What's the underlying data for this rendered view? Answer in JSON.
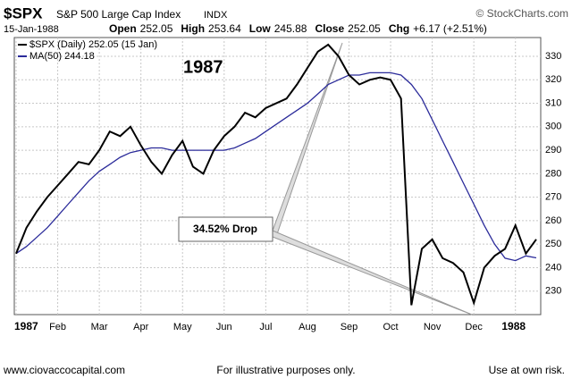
{
  "header": {
    "symbol": "$SPX",
    "name": "S&P 500 Large Cap Index",
    "exchange": "INDX",
    "source": "© StockCharts.com",
    "date": "15-Jan-1988",
    "quote": [
      {
        "label": "Open",
        "value": "252.05"
      },
      {
        "label": "High",
        "value": "253.64"
      },
      {
        "label": "Low",
        "value": "245.88"
      },
      {
        "label": "Close",
        "value": "252.05"
      },
      {
        "label": "Chg",
        "value": "+6.17 (+2.51%)"
      }
    ]
  },
  "chart_data": {
    "type": "line",
    "annotations": [
      "1987",
      "34.52% Drop"
    ],
    "categories": [
      "1987",
      null,
      null,
      null,
      "Feb",
      null,
      null,
      null,
      "Mar",
      null,
      null,
      null,
      "Apr",
      null,
      null,
      null,
      "May",
      null,
      null,
      null,
      "Jun",
      null,
      null,
      null,
      "Jul",
      null,
      null,
      null,
      "Aug",
      null,
      null,
      null,
      "Sep",
      null,
      null,
      null,
      "Oct",
      null,
      null,
      null,
      "Nov",
      null,
      null,
      null,
      "Dec",
      null,
      null,
      null,
      "1988",
      null,
      null
    ],
    "series": [
      {
        "name": "$SPX (Daily) 252.05 (15 Jan)",
        "color": "#000000",
        "values": [
          246,
          257,
          264,
          270,
          275,
          280,
          285,
          284,
          290,
          298,
          296,
          300,
          292,
          285,
          280,
          288,
          294,
          283,
          280,
          290,
          296,
          300,
          306,
          304,
          308,
          310,
          312,
          318,
          325,
          332,
          335,
          330,
          322,
          318,
          320,
          321,
          320,
          312,
          224,
          248,
          252,
          244,
          242,
          238,
          225,
          240,
          245,
          248,
          258,
          246,
          252.05
        ]
      },
      {
        "name": "MA(50) 244.18",
        "color": "#2b2b9a",
        "values": [
          246,
          249,
          253,
          257,
          262,
          267,
          272,
          277,
          281,
          284,
          287,
          289,
          290,
          291,
          291,
          290,
          290,
          290,
          290,
          290,
          290,
          291,
          293,
          295,
          298,
          301,
          304,
          307,
          310,
          314,
          318,
          320,
          322,
          322,
          323,
          323,
          323,
          322,
          318,
          312,
          303,
          294,
          285,
          276,
          267,
          258,
          250,
          244,
          243,
          245,
          244.18
        ]
      }
    ],
    "ylim": [
      220,
      338
    ],
    "yticks": [
      230,
      240,
      250,
      260,
      270,
      280,
      290,
      300,
      310,
      320,
      330
    ],
    "grid": true
  },
  "footer": {
    "left": "www.ciovaccocapital.com",
    "center": "For illustrative purposes only.",
    "right": "Use at own risk."
  }
}
